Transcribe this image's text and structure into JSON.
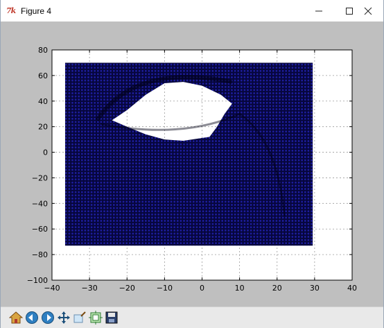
{
  "window": {
    "title": "Figure 4",
    "icon": "tk-feather-icon"
  },
  "controls": {
    "minimize": "minimize-icon",
    "maximize": "maximize-icon",
    "close": "close-icon"
  },
  "chart_data": {
    "type": "scatter",
    "title": "",
    "xlabel": "",
    "ylabel": "",
    "xlim": [
      -40,
      40
    ],
    "ylim": [
      -100,
      80
    ],
    "xticks": [
      -40,
      -30,
      -20,
      -10,
      0,
      10,
      20,
      30,
      40
    ],
    "yticks": [
      -100,
      -80,
      -60,
      -40,
      -20,
      0,
      20,
      40,
      60,
      80
    ],
    "xtick_labels": [
      "−40",
      "−30",
      "−20",
      "−10",
      "0",
      "10",
      "20",
      "30",
      "40"
    ],
    "ytick_labels": [
      "−100",
      "−80",
      "−60",
      "−40",
      "−20",
      "0",
      "20",
      "40",
      "60",
      "80"
    ],
    "grid": true,
    "marker_color": "#0a0a6e",
    "points_region": {
      "x_range": [
        -36.5,
        29.5
      ],
      "y_range": [
        -73,
        70
      ],
      "empty_region_outline": [
        [
          -20,
          33
        ],
        [
          -15,
          45
        ],
        [
          -10,
          54
        ],
        [
          -5,
          55
        ],
        [
          0,
          52
        ],
        [
          5,
          45
        ],
        [
          8,
          38
        ],
        [
          6,
          30
        ],
        [
          4,
          20
        ],
        [
          2,
          12
        ],
        [
          -5,
          9
        ],
        [
          -10,
          10
        ],
        [
          -15,
          14
        ],
        [
          -20,
          20
        ],
        [
          -24,
          25
        ]
      ]
    }
  },
  "toolbar": {
    "buttons": [
      {
        "name": "home-icon"
      },
      {
        "name": "back-icon"
      },
      {
        "name": "forward-icon"
      },
      {
        "name": "pan-icon"
      },
      {
        "name": "zoom-icon"
      },
      {
        "name": "subplots-icon"
      },
      {
        "name": "save-icon"
      }
    ]
  }
}
